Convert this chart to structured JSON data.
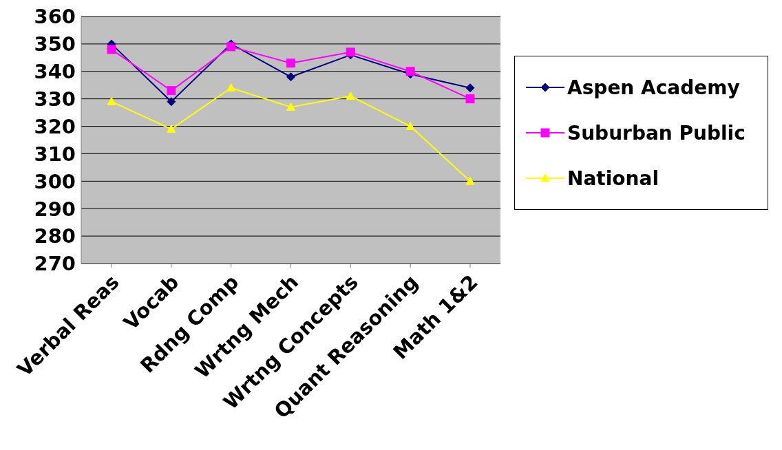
{
  "chart_data": {
    "type": "line",
    "categories": [
      "Verbal Reas",
      "Vocab",
      "Rdng Comp",
      "Wrtng Mech",
      "Wrtng Concepts",
      "Quant Reasoning",
      "Math 1&2"
    ],
    "series": [
      {
        "name": "Aspen Academy",
        "color": "#000080",
        "marker": "diamond",
        "values": [
          350,
          329,
          350,
          338,
          346,
          339,
          334
        ]
      },
      {
        "name": "Suburban Public",
        "color": "#ff00ff",
        "marker": "square",
        "values": [
          348,
          333,
          349,
          343,
          347,
          340,
          330
        ]
      },
      {
        "name": "National",
        "color": "#ffff00",
        "marker": "triangle",
        "values": [
          329,
          319,
          334,
          327,
          331,
          320,
          300
        ]
      }
    ],
    "ylim": [
      270,
      360
    ],
    "yticks": [
      270,
      280,
      290,
      300,
      310,
      320,
      330,
      340,
      350,
      360
    ],
    "grid": "y",
    "legend": "right"
  }
}
